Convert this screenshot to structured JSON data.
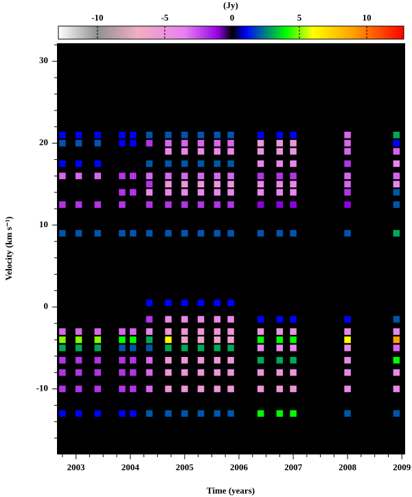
{
  "chart_data": {
    "type": "heatmap",
    "xlabel": "Time (years)",
    "ylabel": "Velocity (km s⁻¹)",
    "colorbar_label": "(Jy)",
    "xlim": [
      2002.65,
      2009.06
    ],
    "xticks": [
      2003,
      2004,
      2005,
      2006,
      2007,
      2008,
      2009
    ],
    "xminorticks": [
      2002.75,
      2003.25,
      2003.5,
      2003.75,
      2004.25,
      2004.5,
      2004.75,
      2005.25,
      2005.5,
      2005.75,
      2006.25,
      2006.5,
      2006.75,
      2007.25,
      2007.5,
      2007.75,
      2008.25,
      2008.5,
      2008.75
    ],
    "ylim": [
      -18,
      32.2
    ],
    "yticks": [
      -10,
      0,
      10,
      20,
      30
    ],
    "yminorticks": [
      -16,
      -14,
      -12,
      -8,
      -6,
      -4,
      -2,
      2,
      4,
      6,
      8,
      12,
      14,
      16,
      18,
      22,
      24,
      26,
      28,
      32
    ],
    "clim": [
      -12.9,
      12.75
    ],
    "cticks": [
      -10,
      -5,
      0,
      5,
      10
    ],
    "background": "#000000",
    "colormap": [
      {
        "value": -12.9,
        "color": "#ffffff"
      },
      {
        "value": -10,
        "color": "#909090"
      },
      {
        "value": -7,
        "color": "#f0b0c0"
      },
      {
        "value": -3.5,
        "color": "#e880f0"
      },
      {
        "value": -1,
        "color": "#9000e0"
      },
      {
        "value": 0,
        "color": "#000000"
      },
      {
        "value": 1,
        "color": "#0000ff"
      },
      {
        "value": 4,
        "color": "#00ff00"
      },
      {
        "value": 6,
        "color": "#ffff00"
      },
      {
        "value": 9,
        "color": "#ffa000"
      },
      {
        "value": 12.75,
        "color": "#ff0000"
      }
    ],
    "x": [
      2002.75,
      2003.05,
      2003.4,
      2003.85,
      2004.05,
      2004.35,
      2004.7,
      2005.0,
      2005.3,
      2005.6,
      2005.85,
      2006.4,
      2006.75,
      2007.0,
      2008.0,
      2008.9
    ],
    "y": [
      21,
      20,
      19,
      17.5,
      16,
      15,
      14,
      12.5,
      9,
      0.5,
      -1.5,
      -3,
      -4,
      -5,
      -6.5,
      -8,
      -10,
      -13
    ],
    "z": [
      [
        1,
        1,
        1,
        1,
        1,
        2,
        2,
        2,
        2,
        2,
        2,
        1,
        1,
        1,
        -3,
        3
      ],
      [
        2,
        2,
        2,
        1,
        1,
        -2,
        -3,
        -3,
        -3,
        -3,
        -3,
        -5,
        -5,
        -5,
        -3,
        1
      ],
      [
        0,
        0,
        0,
        0,
        0,
        0,
        -4,
        -4,
        -4,
        -4,
        -4,
        -5,
        -5,
        -5,
        -3,
        -3
      ],
      [
        1,
        1,
        1,
        0,
        0,
        2,
        2,
        2,
        2,
        2,
        2,
        -4,
        -4,
        -4,
        -2,
        -4
      ],
      [
        -3,
        -3,
        -3,
        -2,
        -2,
        -3,
        -3,
        -3,
        -3,
        -3,
        -3,
        -2,
        -2,
        -2,
        -3,
        -3
      ],
      [
        0,
        0,
        0,
        0,
        0,
        -2,
        -5,
        -5,
        -5,
        -5,
        -5,
        -4,
        -4,
        -4,
        -3,
        -4
      ],
      [
        0,
        0,
        0,
        -2,
        -2,
        -4,
        -4,
        -4,
        -4,
        -4,
        -4,
        -4,
        -4,
        -4,
        -2,
        2
      ],
      [
        -2,
        -2,
        -2,
        -2,
        0,
        -2,
        -2,
        -2,
        -2,
        -2,
        -2,
        -1,
        -1,
        -1,
        -1,
        2
      ],
      [
        2,
        2,
        2,
        2,
        2,
        2,
        2,
        2,
        2,
        2,
        2,
        2,
        2,
        2,
        2,
        3
      ],
      [
        0,
        0,
        0,
        0,
        0,
        1,
        1,
        1,
        1,
        1,
        1,
        0,
        0,
        0,
        0,
        0
      ],
      [
        0,
        0,
        0,
        0,
        0,
        -2,
        -4,
        -4,
        -4,
        -4,
        -4,
        1,
        1,
        1,
        1,
        2
      ],
      [
        -3,
        -3,
        -3,
        -3,
        -3,
        -4,
        -5,
        -5,
        -5,
        -5,
        -5,
        -5,
        -5,
        -5,
        -4,
        -4
      ],
      [
        5,
        5,
        5,
        4,
        4,
        3,
        6,
        -6,
        -6,
        -6,
        -6,
        4,
        4,
        4,
        6,
        9
      ],
      [
        3,
        3,
        3,
        2,
        2,
        2,
        3,
        3,
        3,
        3,
        3,
        -4,
        -4,
        -4,
        -4,
        -3
      ],
      [
        -2,
        -2,
        -2,
        -2,
        -2,
        -3,
        -5,
        -5,
        -5,
        -5,
        -5,
        3,
        3,
        3,
        -4,
        4
      ],
      [
        -2,
        -2,
        -2,
        -2,
        -2,
        -3,
        -5,
        -5,
        -5,
        -5,
        -5,
        -5,
        -5,
        -5,
        -4,
        -4
      ],
      [
        -2,
        -2,
        -2,
        -2,
        -2,
        -3,
        -5,
        -5,
        -5,
        -5,
        -5,
        -5,
        -5,
        -5,
        -4,
        -4
      ],
      [
        1,
        1,
        1,
        1,
        1,
        2,
        2,
        2,
        2,
        2,
        2,
        4,
        4,
        4,
        2,
        2
      ]
    ]
  }
}
